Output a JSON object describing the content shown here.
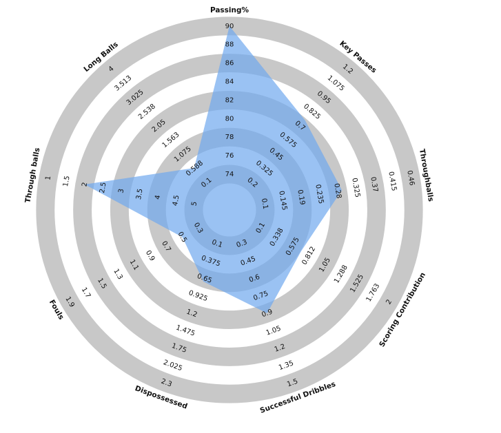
{
  "chart_data": {
    "type": "radar",
    "params": [
      "Passing%",
      "Key Passes",
      "Throughballs",
      "Scoring Contribution",
      "Successful Dribbles",
      "Dispossessed",
      "Fouls",
      "Through balls",
      "Long Balls"
    ],
    "ticks": [
      [
        74,
        76,
        78,
        80,
        82,
        84,
        86,
        88,
        90
      ],
      [
        0.2,
        0.325,
        0.45,
        0.575,
        0.7,
        0.825,
        0.95,
        1.075,
        1.2
      ],
      [
        0.1,
        0.145,
        0.19,
        0.235,
        0.28,
        0.325,
        0.37,
        0.415,
        0.46
      ],
      [
        0.1,
        0.338,
        0.575,
        0.812,
        1.05,
        1.288,
        1.525,
        1.763,
        2
      ],
      [
        0.3,
        0.45,
        0.6,
        0.75,
        0.9,
        1.05,
        1.2,
        1.35,
        1.5
      ],
      [
        0.1,
        0.375,
        0.65,
        0.925,
        1.2,
        1.475,
        1.75,
        2.025,
        2.3
      ],
      [
        0.3,
        0.5,
        0.7,
        0.9,
        1.1,
        1.3,
        1.5,
        1.7,
        1.9
      ],
      [
        5,
        4.5,
        4,
        3.5,
        3,
        2.5,
        2,
        1.5,
        1
      ],
      [
        0.1,
        0.588,
        1.075,
        1.563,
        2.05,
        2.538,
        3.025,
        3.513,
        4
      ]
    ],
    "values": [
      90,
      0.75,
      0.29,
      0.7,
      0.9,
      0.7,
      0.5,
      2,
      0.6
    ],
    "color": "#6fa8ee",
    "ring_color": "#c8c8c8"
  }
}
